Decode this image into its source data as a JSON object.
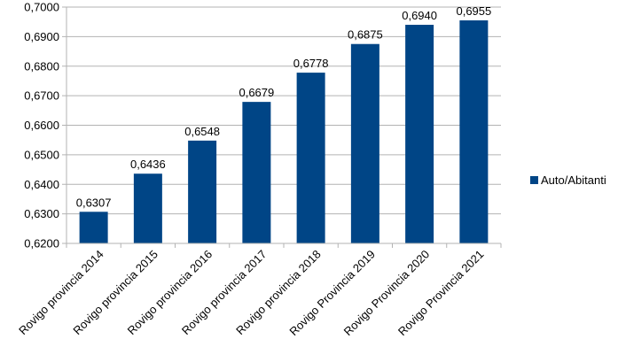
{
  "chart_data": {
    "type": "bar",
    "categories": [
      "Rovigo provincia 2014",
      "Rovigo provincia 2015",
      "Rovigo provincia 2016",
      "Rovigo provincia 2017",
      "Rovigo provincia 2018",
      "Rovigo Provincia 2019",
      "Rovigo Provincia 2020",
      "Rovigo Provincia 2021"
    ],
    "series": [
      {
        "name": "Auto/Abitanti",
        "values": [
          0.6307,
          0.6436,
          0.6548,
          0.6679,
          0.6778,
          0.6875,
          0.694,
          0.6955
        ],
        "labels": [
          "0,6307",
          "0,6436",
          "0,6548",
          "0,6679",
          "0,6778",
          "0,6875",
          "0,6940",
          "0,6955"
        ]
      }
    ],
    "title": "",
    "xlabel": "",
    "ylabel": "",
    "ylim": [
      0.62,
      0.7
    ],
    "yticks": [
      0.62,
      0.63,
      0.64,
      0.65,
      0.66,
      0.67,
      0.68,
      0.69,
      0.7
    ],
    "ytick_labels": [
      "0,6200",
      "0,6300",
      "0,6400",
      "0,6500",
      "0,6600",
      "0,6700",
      "0,6800",
      "0,6900",
      "0,7000"
    ],
    "grid": true,
    "legend_position": "right",
    "colors": {
      "bar": "#004586",
      "grid": "#b3b3b3",
      "axis": "#b3b3b3"
    }
  }
}
